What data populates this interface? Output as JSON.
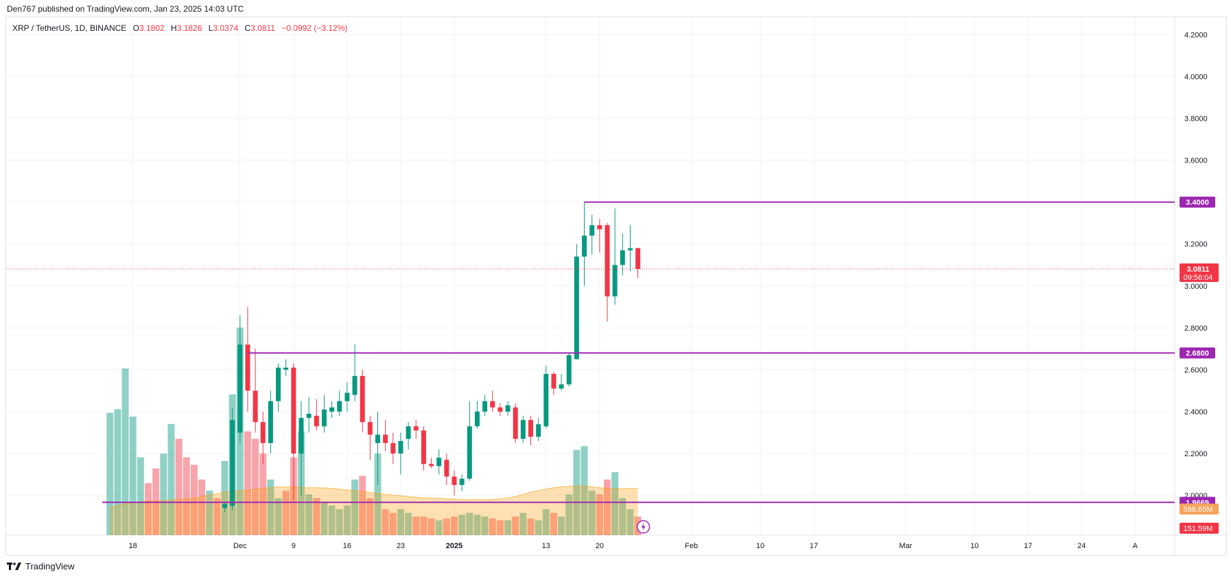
{
  "header": {
    "published": "Den767 published on TradingView.com, Jan 23, 2025 14:03 UTC"
  },
  "legend": {
    "symbol": "XRP / TetherUS, 1D, BINANCE",
    "o_label": "O",
    "o": "3.1802",
    "h_label": "H",
    "h": "3.1826",
    "l_label": "L",
    "l": "3.0374",
    "c_label": "C",
    "c": "3.0811",
    "change": "−0.0992 (−3.12%)"
  },
  "footer": {
    "brand": "TradingView"
  },
  "colors": {
    "up": "#089981",
    "down": "#f23645",
    "level": "#9c27b0",
    "grid": "#f0f3fa"
  },
  "chart_data": {
    "type": "candlestick",
    "price_axis": {
      "min": 1.85,
      "max": 4.25,
      "ticks": [
        "4.2000",
        "4.0000",
        "3.8000",
        "3.6000",
        "3.4000",
        "3.2000",
        "3.0000",
        "2.8000",
        "2.6000",
        "2.4000",
        "2.2000",
        "2.0000"
      ]
    },
    "time_axis_labels": [
      {
        "i": -2,
        "text": "18"
      },
      {
        "i": 12,
        "text": "Dec"
      },
      {
        "i": 19,
        "text": "9"
      },
      {
        "i": 26,
        "text": "16"
      },
      {
        "i": 33,
        "text": "23"
      },
      {
        "i": 40,
        "text": "2025"
      },
      {
        "i": 52,
        "text": "13"
      },
      {
        "i": 59,
        "text": "20"
      },
      {
        "i": 71,
        "text": "Feb"
      },
      {
        "i": 80,
        "text": "10"
      },
      {
        "i": 87,
        "text": "17"
      },
      {
        "i": 99,
        "text": "Mar"
      },
      {
        "i": 108,
        "text": "10"
      },
      {
        "i": 115,
        "text": "17"
      },
      {
        "i": 122,
        "text": "24"
      },
      {
        "i": 129,
        "text": "A"
      }
    ],
    "candles": [
      {
        "i": 10,
        "o": 1.94,
        "h": 1.97,
        "l": 1.92,
        "c": 1.96
      },
      {
        "i": 11,
        "o": 1.95,
        "h": 2.42,
        "l": 1.93,
        "c": 2.36
      },
      {
        "i": 12,
        "o": 2.3,
        "h": 2.86,
        "l": 2.25,
        "c": 2.72
      },
      {
        "i": 13,
        "o": 2.72,
        "h": 2.9,
        "l": 2.4,
        "c": 2.5
      },
      {
        "i": 14,
        "o": 2.5,
        "h": 2.7,
        "l": 2.3,
        "c": 2.35
      },
      {
        "i": 15,
        "o": 2.35,
        "h": 2.4,
        "l": 2.15,
        "c": 2.25
      },
      {
        "i": 16,
        "o": 2.25,
        "h": 2.5,
        "l": 2.2,
        "c": 2.45
      },
      {
        "i": 17,
        "o": 2.45,
        "h": 2.63,
        "l": 2.4,
        "c": 2.61
      },
      {
        "i": 18,
        "o": 2.6,
        "h": 2.65,
        "l": 2.57,
        "c": 2.61
      },
      {
        "i": 19,
        "o": 2.61,
        "h": 2.63,
        "l": 1.98,
        "c": 2.2
      },
      {
        "i": 20,
        "o": 2.2,
        "h": 2.45,
        "l": 2.0,
        "c": 2.37
      },
      {
        "i": 21,
        "o": 2.37,
        "h": 2.47,
        "l": 2.3,
        "c": 2.39
      },
      {
        "i": 22,
        "o": 2.38,
        "h": 2.46,
        "l": 2.31,
        "c": 2.33
      },
      {
        "i": 23,
        "o": 2.33,
        "h": 2.48,
        "l": 2.3,
        "c": 2.41
      },
      {
        "i": 24,
        "o": 2.4,
        "h": 2.45,
        "l": 2.37,
        "c": 2.42
      },
      {
        "i": 25,
        "o": 2.4,
        "h": 2.5,
        "l": 2.38,
        "c": 2.45
      },
      {
        "i": 26,
        "o": 2.45,
        "h": 2.54,
        "l": 2.4,
        "c": 2.49
      },
      {
        "i": 27,
        "o": 2.48,
        "h": 2.72,
        "l": 2.45,
        "c": 2.57
      },
      {
        "i": 28,
        "o": 2.57,
        "h": 2.6,
        "l": 2.3,
        "c": 2.35
      },
      {
        "i": 29,
        "o": 2.35,
        "h": 2.38,
        "l": 2.17,
        "c": 2.29
      },
      {
        "i": 30,
        "o": 2.25,
        "h": 2.4,
        "l": 2.05,
        "c": 2.29
      },
      {
        "i": 31,
        "o": 2.29,
        "h": 2.36,
        "l": 2.21,
        "c": 2.25
      },
      {
        "i": 32,
        "o": 2.25,
        "h": 2.3,
        "l": 2.15,
        "c": 2.2
      },
      {
        "i": 33,
        "o": 2.2,
        "h": 2.3,
        "l": 2.1,
        "c": 2.26
      },
      {
        "i": 34,
        "o": 2.27,
        "h": 2.35,
        "l": 2.22,
        "c": 2.33
      },
      {
        "i": 35,
        "o": 2.33,
        "h": 2.36,
        "l": 2.27,
        "c": 2.31
      },
      {
        "i": 36,
        "o": 2.31,
        "h": 2.33,
        "l": 2.12,
        "c": 2.15
      },
      {
        "i": 37,
        "o": 2.15,
        "h": 2.18,
        "l": 2.13,
        "c": 2.14
      },
      {
        "i": 38,
        "o": 2.14,
        "h": 2.22,
        "l": 2.1,
        "c": 2.18
      },
      {
        "i": 39,
        "o": 2.17,
        "h": 2.2,
        "l": 2.05,
        "c": 2.09
      },
      {
        "i": 40,
        "o": 2.09,
        "h": 2.12,
        "l": 2.0,
        "c": 2.05
      },
      {
        "i": 41,
        "o": 2.05,
        "h": 2.1,
        "l": 2.02,
        "c": 2.08
      },
      {
        "i": 42,
        "o": 2.08,
        "h": 2.45,
        "l": 2.07,
        "c": 2.33
      },
      {
        "i": 43,
        "o": 2.33,
        "h": 2.45,
        "l": 2.32,
        "c": 2.4
      },
      {
        "i": 44,
        "o": 2.4,
        "h": 2.48,
        "l": 2.38,
        "c": 2.45
      },
      {
        "i": 45,
        "o": 2.45,
        "h": 2.5,
        "l": 2.4,
        "c": 2.42
      },
      {
        "i": 46,
        "o": 2.42,
        "h": 2.44,
        "l": 2.38,
        "c": 2.4
      },
      {
        "i": 47,
        "o": 2.4,
        "h": 2.45,
        "l": 2.38,
        "c": 2.43
      },
      {
        "i": 48,
        "o": 2.42,
        "h": 2.44,
        "l": 2.25,
        "c": 2.27
      },
      {
        "i": 49,
        "o": 2.27,
        "h": 2.38,
        "l": 2.25,
        "c": 2.36
      },
      {
        "i": 50,
        "o": 2.36,
        "h": 2.38,
        "l": 2.24,
        "c": 2.28
      },
      {
        "i": 51,
        "o": 2.28,
        "h": 2.37,
        "l": 2.26,
        "c": 2.34
      },
      {
        "i": 52,
        "o": 2.33,
        "h": 2.62,
        "l": 2.32,
        "c": 2.58
      },
      {
        "i": 53,
        "o": 2.58,
        "h": 2.59,
        "l": 2.48,
        "c": 2.51
      },
      {
        "i": 54,
        "o": 2.51,
        "h": 2.58,
        "l": 2.5,
        "c": 2.53
      },
      {
        "i": 55,
        "o": 2.53,
        "h": 2.68,
        "l": 2.52,
        "c": 2.67
      },
      {
        "i": 56,
        "o": 2.65,
        "h": 3.2,
        "l": 2.65,
        "c": 3.14
      },
      {
        "i": 57,
        "o": 3.14,
        "h": 3.4,
        "l": 3.0,
        "c": 3.24
      },
      {
        "i": 58,
        "o": 3.24,
        "h": 3.34,
        "l": 3.15,
        "c": 3.29
      },
      {
        "i": 59,
        "o": 3.29,
        "h": 3.32,
        "l": 3.16,
        "c": 3.27
      },
      {
        "i": 60,
        "o": 3.29,
        "h": 3.3,
        "l": 2.83,
        "c": 2.95
      },
      {
        "i": 61,
        "o": 2.95,
        "h": 3.37,
        "l": 2.91,
        "c": 3.1
      },
      {
        "i": 62,
        "o": 3.1,
        "h": 3.25,
        "l": 3.05,
        "c": 3.17
      },
      {
        "i": 63,
        "o": 3.17,
        "h": 3.29,
        "l": 3.07,
        "c": 3.18
      },
      {
        "i": 64,
        "o": 3.1802,
        "h": 3.1826,
        "l": 3.0374,
        "c": 3.0811
      }
    ],
    "volume": {
      "max": 600,
      "bars": [
        {
          "i": -5,
          "v": 330,
          "up": true
        },
        {
          "i": -4,
          "v": 340,
          "up": true
        },
        {
          "i": -3,
          "v": 450,
          "up": true
        },
        {
          "i": -2,
          "v": 320,
          "up": true
        },
        {
          "i": -1,
          "v": 210,
          "up": true
        },
        {
          "i": 0,
          "v": 140,
          "up": false
        },
        {
          "i": 1,
          "v": 180,
          "up": false
        },
        {
          "i": 2,
          "v": 220,
          "up": true
        },
        {
          "i": 3,
          "v": 300,
          "up": true
        },
        {
          "i": 4,
          "v": 260,
          "up": false
        },
        {
          "i": 5,
          "v": 210,
          "up": false
        },
        {
          "i": 6,
          "v": 190,
          "up": false
        },
        {
          "i": 7,
          "v": 150,
          "up": false
        },
        {
          "i": 8,
          "v": 120,
          "up": true
        },
        {
          "i": 9,
          "v": 100,
          "up": false
        },
        {
          "i": 10,
          "v": 200,
          "up": true
        },
        {
          "i": 11,
          "v": 380,
          "up": true
        },
        {
          "i": 12,
          "v": 560,
          "up": true
        },
        {
          "i": 13,
          "v": 280,
          "up": false
        },
        {
          "i": 14,
          "v": 260,
          "up": false
        },
        {
          "i": 15,
          "v": 220,
          "up": false
        },
        {
          "i": 16,
          "v": 150,
          "up": true
        },
        {
          "i": 17,
          "v": 100,
          "up": true
        },
        {
          "i": 18,
          "v": 120,
          "up": false
        },
        {
          "i": 19,
          "v": 210,
          "up": false
        },
        {
          "i": 20,
          "v": 280,
          "up": true
        },
        {
          "i": 21,
          "v": 110,
          "up": true
        },
        {
          "i": 22,
          "v": 100,
          "up": false
        },
        {
          "i": 23,
          "v": 90,
          "up": true
        },
        {
          "i": 24,
          "v": 80,
          "up": true
        },
        {
          "i": 25,
          "v": 70,
          "up": true
        },
        {
          "i": 26,
          "v": 80,
          "up": true
        },
        {
          "i": 27,
          "v": 150,
          "up": true
        },
        {
          "i": 28,
          "v": 160,
          "up": false
        },
        {
          "i": 29,
          "v": 100,
          "up": false
        },
        {
          "i": 30,
          "v": 220,
          "up": true
        },
        {
          "i": 31,
          "v": 70,
          "up": false
        },
        {
          "i": 32,
          "v": 60,
          "up": false
        },
        {
          "i": 33,
          "v": 70,
          "up": true
        },
        {
          "i": 34,
          "v": 60,
          "up": true
        },
        {
          "i": 35,
          "v": 50,
          "up": false
        },
        {
          "i": 36,
          "v": 50,
          "up": false
        },
        {
          "i": 37,
          "v": 45,
          "up": false
        },
        {
          "i": 38,
          "v": 40,
          "up": true
        },
        {
          "i": 39,
          "v": 45,
          "up": false
        },
        {
          "i": 40,
          "v": 50,
          "up": false
        },
        {
          "i": 41,
          "v": 55,
          "up": true
        },
        {
          "i": 42,
          "v": 60,
          "up": true
        },
        {
          "i": 43,
          "v": 55,
          "up": true
        },
        {
          "i": 44,
          "v": 50,
          "up": true
        },
        {
          "i": 45,
          "v": 45,
          "up": false
        },
        {
          "i": 46,
          "v": 40,
          "up": false
        },
        {
          "i": 47,
          "v": 40,
          "up": true
        },
        {
          "i": 48,
          "v": 50,
          "up": false
        },
        {
          "i": 49,
          "v": 60,
          "up": true
        },
        {
          "i": 50,
          "v": 45,
          "up": false
        },
        {
          "i": 51,
          "v": 40,
          "up": true
        },
        {
          "i": 52,
          "v": 70,
          "up": true
        },
        {
          "i": 53,
          "v": 60,
          "up": false
        },
        {
          "i": 54,
          "v": 50,
          "up": true
        },
        {
          "i": 55,
          "v": 110,
          "up": true
        },
        {
          "i": 56,
          "v": 230,
          "up": true
        },
        {
          "i": 57,
          "v": 240,
          "up": true
        },
        {
          "i": 58,
          "v": 120,
          "up": true
        },
        {
          "i": 59,
          "v": 110,
          "up": false
        },
        {
          "i": 60,
          "v": 150,
          "up": false
        },
        {
          "i": 61,
          "v": 170,
          "up": true
        },
        {
          "i": 62,
          "v": 100,
          "up": true
        },
        {
          "i": 63,
          "v": 70,
          "up": true
        },
        {
          "i": 64,
          "v": 50,
          "up": false
        }
      ]
    },
    "volume_ma": {
      "from": -5,
      "to": 64,
      "values": [
        75,
        80,
        85,
        88,
        90,
        92,
        92,
        93,
        95,
        96,
        98,
        100,
        104,
        108,
        112,
        116,
        118,
        120,
        122,
        124,
        126,
        128,
        130,
        130,
        130,
        128,
        128,
        128,
        127,
        126,
        124,
        122,
        120,
        118,
        115,
        112,
        110,
        108,
        106,
        104,
        102,
        100,
        100,
        100,
        98,
        98,
        96,
        96,
        96,
        96,
        96,
        98,
        100,
        104,
        110,
        116,
        120,
        124,
        128,
        130,
        132,
        132,
        132,
        130,
        128,
        126,
        126,
        126,
        126,
        126
      ]
    },
    "levels": [
      {
        "price": 3.4,
        "from": 57,
        "label": "3.4000"
      },
      {
        "price": 2.68,
        "from": 13,
        "label": "2.6800"
      },
      {
        "price": 1.9669,
        "from": -6,
        "label": "1.9669"
      }
    ],
    "current": {
      "price": 3.0811,
      "label": "3.0811",
      "countdown": "09:56:04"
    },
    "volume_labels": [
      {
        "text": "588.65M",
        "color": "#f7a35c"
      },
      {
        "text": "151.59M",
        "color": "#f23645"
      }
    ]
  }
}
